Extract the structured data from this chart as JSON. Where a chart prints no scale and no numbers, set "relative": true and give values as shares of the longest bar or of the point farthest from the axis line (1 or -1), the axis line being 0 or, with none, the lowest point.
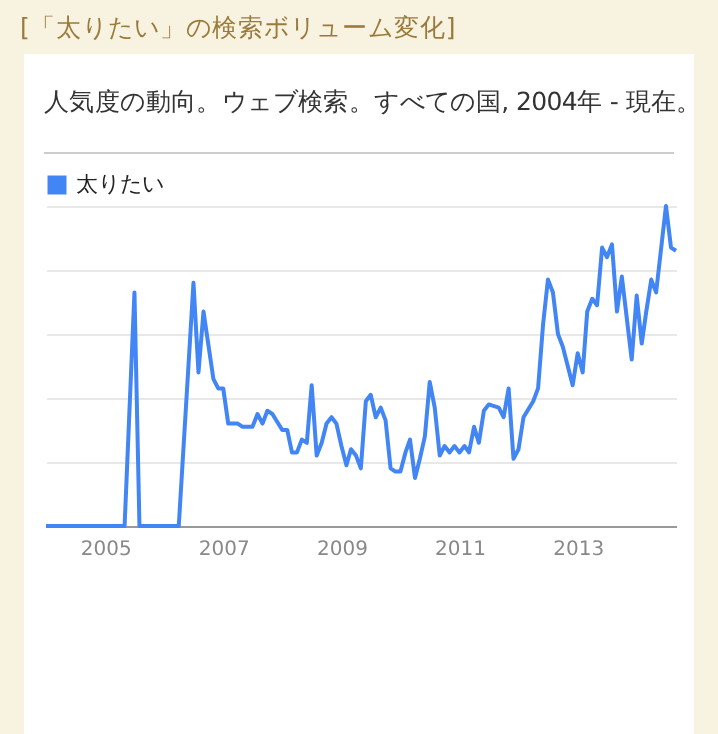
{
  "chart_data": {
    "type": "line",
    "title": "[「太りたい」の検索ボリューム変化]",
    "subtitle": "人気度の動向。ウェブ検索。すべての国, 2004年 - 現在。",
    "relative": true,
    "grid": "y",
    "legend": "top left",
    "x": [
      "2004-01",
      "2005-05",
      "2005-07",
      "2005-08",
      "2006-04",
      "2006-07",
      "2006-08",
      "2006-09",
      "2006-11",
      "2006-12",
      "2007-01",
      "2007-02",
      "2007-04",
      "2007-05",
      "2007-07",
      "2007-08",
      "2007-09",
      "2007-10",
      "2007-11",
      "2008-01",
      "2008-02",
      "2008-03",
      "2008-04",
      "2008-05",
      "2008-06",
      "2008-07",
      "2008-08",
      "2008-09",
      "2008-10",
      "2008-11",
      "2008-12",
      "2009-01",
      "2009-02",
      "2009-03",
      "2009-04",
      "2009-05",
      "2009-06",
      "2009-07",
      "2009-08",
      "2009-09",
      "2009-10",
      "2009-11",
      "2009-12",
      "2010-01",
      "2010-02",
      "2010-03",
      "2010-04",
      "2010-05",
      "2010-06",
      "2010-07",
      "2010-08",
      "2010-09",
      "2010-10",
      "2010-11",
      "2010-12",
      "2011-01",
      "2011-02",
      "2011-03",
      "2011-04",
      "2011-05",
      "2011-06",
      "2011-07",
      "2011-09",
      "2011-10",
      "2011-11",
      "2011-12",
      "2012-01",
      "2012-02",
      "2012-04",
      "2012-05",
      "2012-06",
      "2012-07",
      "2012-08",
      "2012-09",
      "2012-10",
      "2012-12",
      "2013-01",
      "2013-02",
      "2013-03",
      "2013-04",
      "2013-05",
      "2013-06",
      "2013-07",
      "2013-08",
      "2013-09",
      "2013-10",
      "2013-12",
      "2014-01",
      "2014-02",
      "2014-03",
      "2014-04",
      "2014-05",
      "2014-07",
      "2014-08",
      "2014-09"
    ],
    "xlim": [
      "2004-01",
      "2014-09"
    ],
    "xticks": [
      {
        "value": "2005-01",
        "label": "2005"
      },
      {
        "value": "2007-01",
        "label": "2007"
      },
      {
        "value": "2009-01",
        "label": "2009"
      },
      {
        "value": "2011-01",
        "label": "2011"
      },
      {
        "value": "2013-01",
        "label": "2013"
      }
    ],
    "series": [
      {
        "name": "太りたい",
        "color": "#4285f4",
        "values": [
          0,
          0,
          0.73,
          0,
          0,
          0.76,
          0.48,
          0.67,
          0.46,
          0.43,
          0.43,
          0.32,
          0.32,
          0.31,
          0.31,
          0.35,
          0.32,
          0.36,
          0.35,
          0.3,
          0.3,
          0.23,
          0.23,
          0.27,
          0.26,
          0.44,
          0.22,
          0.26,
          0.32,
          0.34,
          0.32,
          0.25,
          0.19,
          0.24,
          0.22,
          0.18,
          0.39,
          0.41,
          0.34,
          0.37,
          0.33,
          0.18,
          0.17,
          0.17,
          0.23,
          0.27,
          0.15,
          0.21,
          0.28,
          0.45,
          0.37,
          0.22,
          0.25,
          0.23,
          0.25,
          0.23,
          0.25,
          0.23,
          0.31,
          0.26,
          0.36,
          0.38,
          0.37,
          0.34,
          0.43,
          0.21,
          0.24,
          0.34,
          0.39,
          0.43,
          0.63,
          0.77,
          0.73,
          0.6,
          0.56,
          0.44,
          0.54,
          0.48,
          0.67,
          0.71,
          0.69,
          0.87,
          0.84,
          0.88,
          0.67,
          0.78,
          0.52,
          0.72,
          0.57,
          0.67,
          0.77,
          0.73,
          1,
          0.87,
          0.86
        ]
      }
    ]
  }
}
